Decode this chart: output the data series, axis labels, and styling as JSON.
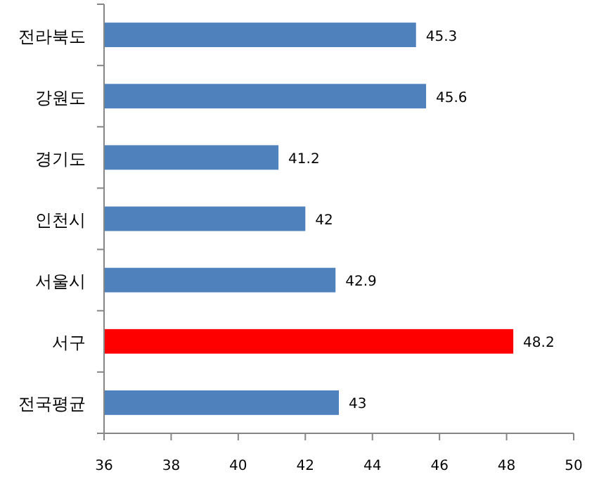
{
  "chart_data": {
    "type": "bar",
    "orientation": "horizontal",
    "categories": [
      "전라북도",
      "강원도",
      "경기도",
      "인천시",
      "서울시",
      "서구",
      "전국평균"
    ],
    "values": [
      45.3,
      45.6,
      41.2,
      42,
      42.9,
      48.2,
      43
    ],
    "colors": [
      "#4f81bd",
      "#4f81bd",
      "#4f81bd",
      "#4f81bd",
      "#4f81bd",
      "#ff0000",
      "#4f81bd"
    ],
    "xlim": [
      36,
      50
    ],
    "xticks": [
      36,
      38,
      40,
      42,
      44,
      46,
      48,
      50
    ],
    "data_labels": true,
    "grid": false
  }
}
